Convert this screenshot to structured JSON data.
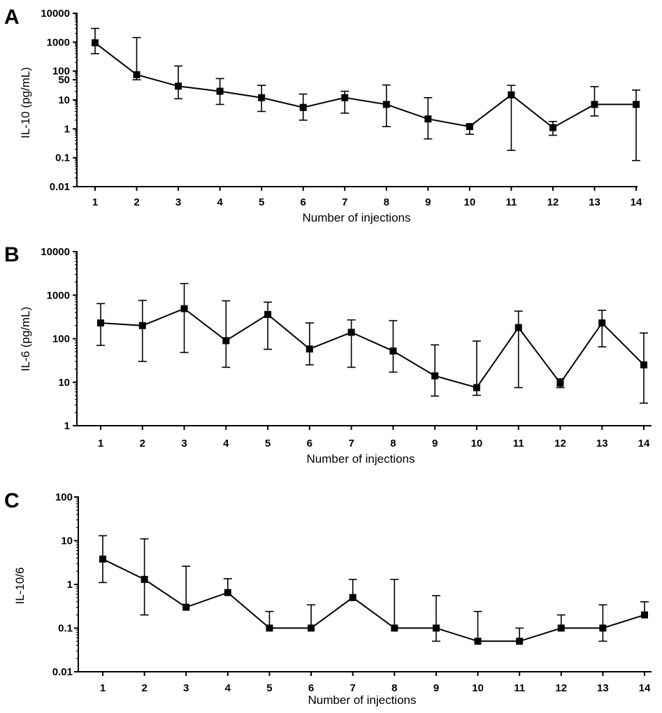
{
  "chart_data": [
    {
      "panel": "A",
      "type": "line",
      "ylabel": "IL-10 (pg/mL)",
      "xlabel": "Number of injections",
      "yscale": "log",
      "ylim": [
        0.01,
        10000
      ],
      "yticks": [
        "10000",
        "1000",
        "100",
        "50",
        "10",
        "1",
        "0.1",
        "0.01"
      ],
      "ytick_values": [
        10000,
        1000,
        100,
        50,
        10,
        1,
        0.1,
        0.01
      ],
      "x": [
        1,
        2,
        3,
        4,
        5,
        6,
        7,
        8,
        9,
        10,
        11,
        12,
        13,
        14
      ],
      "values": [
        950,
        75,
        30,
        20,
        12,
        5.5,
        12,
        7,
        2.2,
        1.2,
        15,
        1.1,
        7,
        7
      ],
      "err_upper": [
        3000,
        1450,
        150,
        55,
        32,
        16,
        20,
        33,
        12,
        1.4,
        32,
        1.8,
        29,
        22
      ],
      "err_lower": [
        400,
        50,
        11,
        7,
        4,
        2,
        3.5,
        1.2,
        0.45,
        0.65,
        0.18,
        0.6,
        2.8,
        0.08
      ]
    },
    {
      "panel": "B",
      "type": "line",
      "ylabel": "IL-6 (pg/mL)",
      "xlabel": "Number of injections",
      "yscale": "log",
      "ylim": [
        1,
        10000
      ],
      "yticks": [
        "10000",
        "1000",
        "100",
        "10",
        "1"
      ],
      "ytick_values": [
        10000,
        1000,
        100,
        10,
        1
      ],
      "x": [
        1,
        2,
        3,
        4,
        5,
        6,
        7,
        8,
        9,
        10,
        11,
        12,
        13,
        14
      ],
      "values": [
        230,
        200,
        490,
        90,
        360,
        58,
        140,
        52,
        14,
        7.5,
        180,
        9.5,
        230,
        25
      ],
      "err_upper": [
        640,
        760,
        1850,
        740,
        690,
        230,
        270,
        260,
        72,
        88,
        430,
        12,
        450,
        135
      ],
      "err_lower": [
        70,
        30,
        48,
        22,
        57,
        25,
        22,
        17,
        4.8,
        5,
        7.5,
        7.5,
        65,
        3.3
      ]
    },
    {
      "panel": "C",
      "type": "line",
      "ylabel": "IL-10/6",
      "xlabel": "Number of injections",
      "yscale": "log",
      "ylim": [
        0.01,
        100
      ],
      "yticks": [
        "100",
        "10",
        "1",
        "0.1",
        "0.01"
      ],
      "ytick_values": [
        100,
        10,
        1,
        0.1,
        0.01
      ],
      "x": [
        1,
        2,
        3,
        4,
        5,
        6,
        7,
        8,
        9,
        10,
        11,
        12,
        13,
        14
      ],
      "values": [
        3.8,
        1.3,
        0.3,
        0.65,
        0.1,
        0.1,
        0.5,
        0.1,
        0.1,
        0.05,
        0.05,
        0.1,
        0.1,
        0.2
      ],
      "err_upper": [
        13,
        11,
        2.6,
        1.35,
        0.24,
        0.34,
        1.3,
        1.3,
        0.55,
        0.24,
        0.1,
        0.2,
        0.34,
        0.4
      ],
      "err_lower": [
        1.1,
        0.2,
        0.3,
        0.65,
        0.1,
        0.1,
        0.5,
        0.1,
        0.05,
        0.05,
        0.05,
        0.1,
        0.05,
        0.2
      ]
    }
  ]
}
